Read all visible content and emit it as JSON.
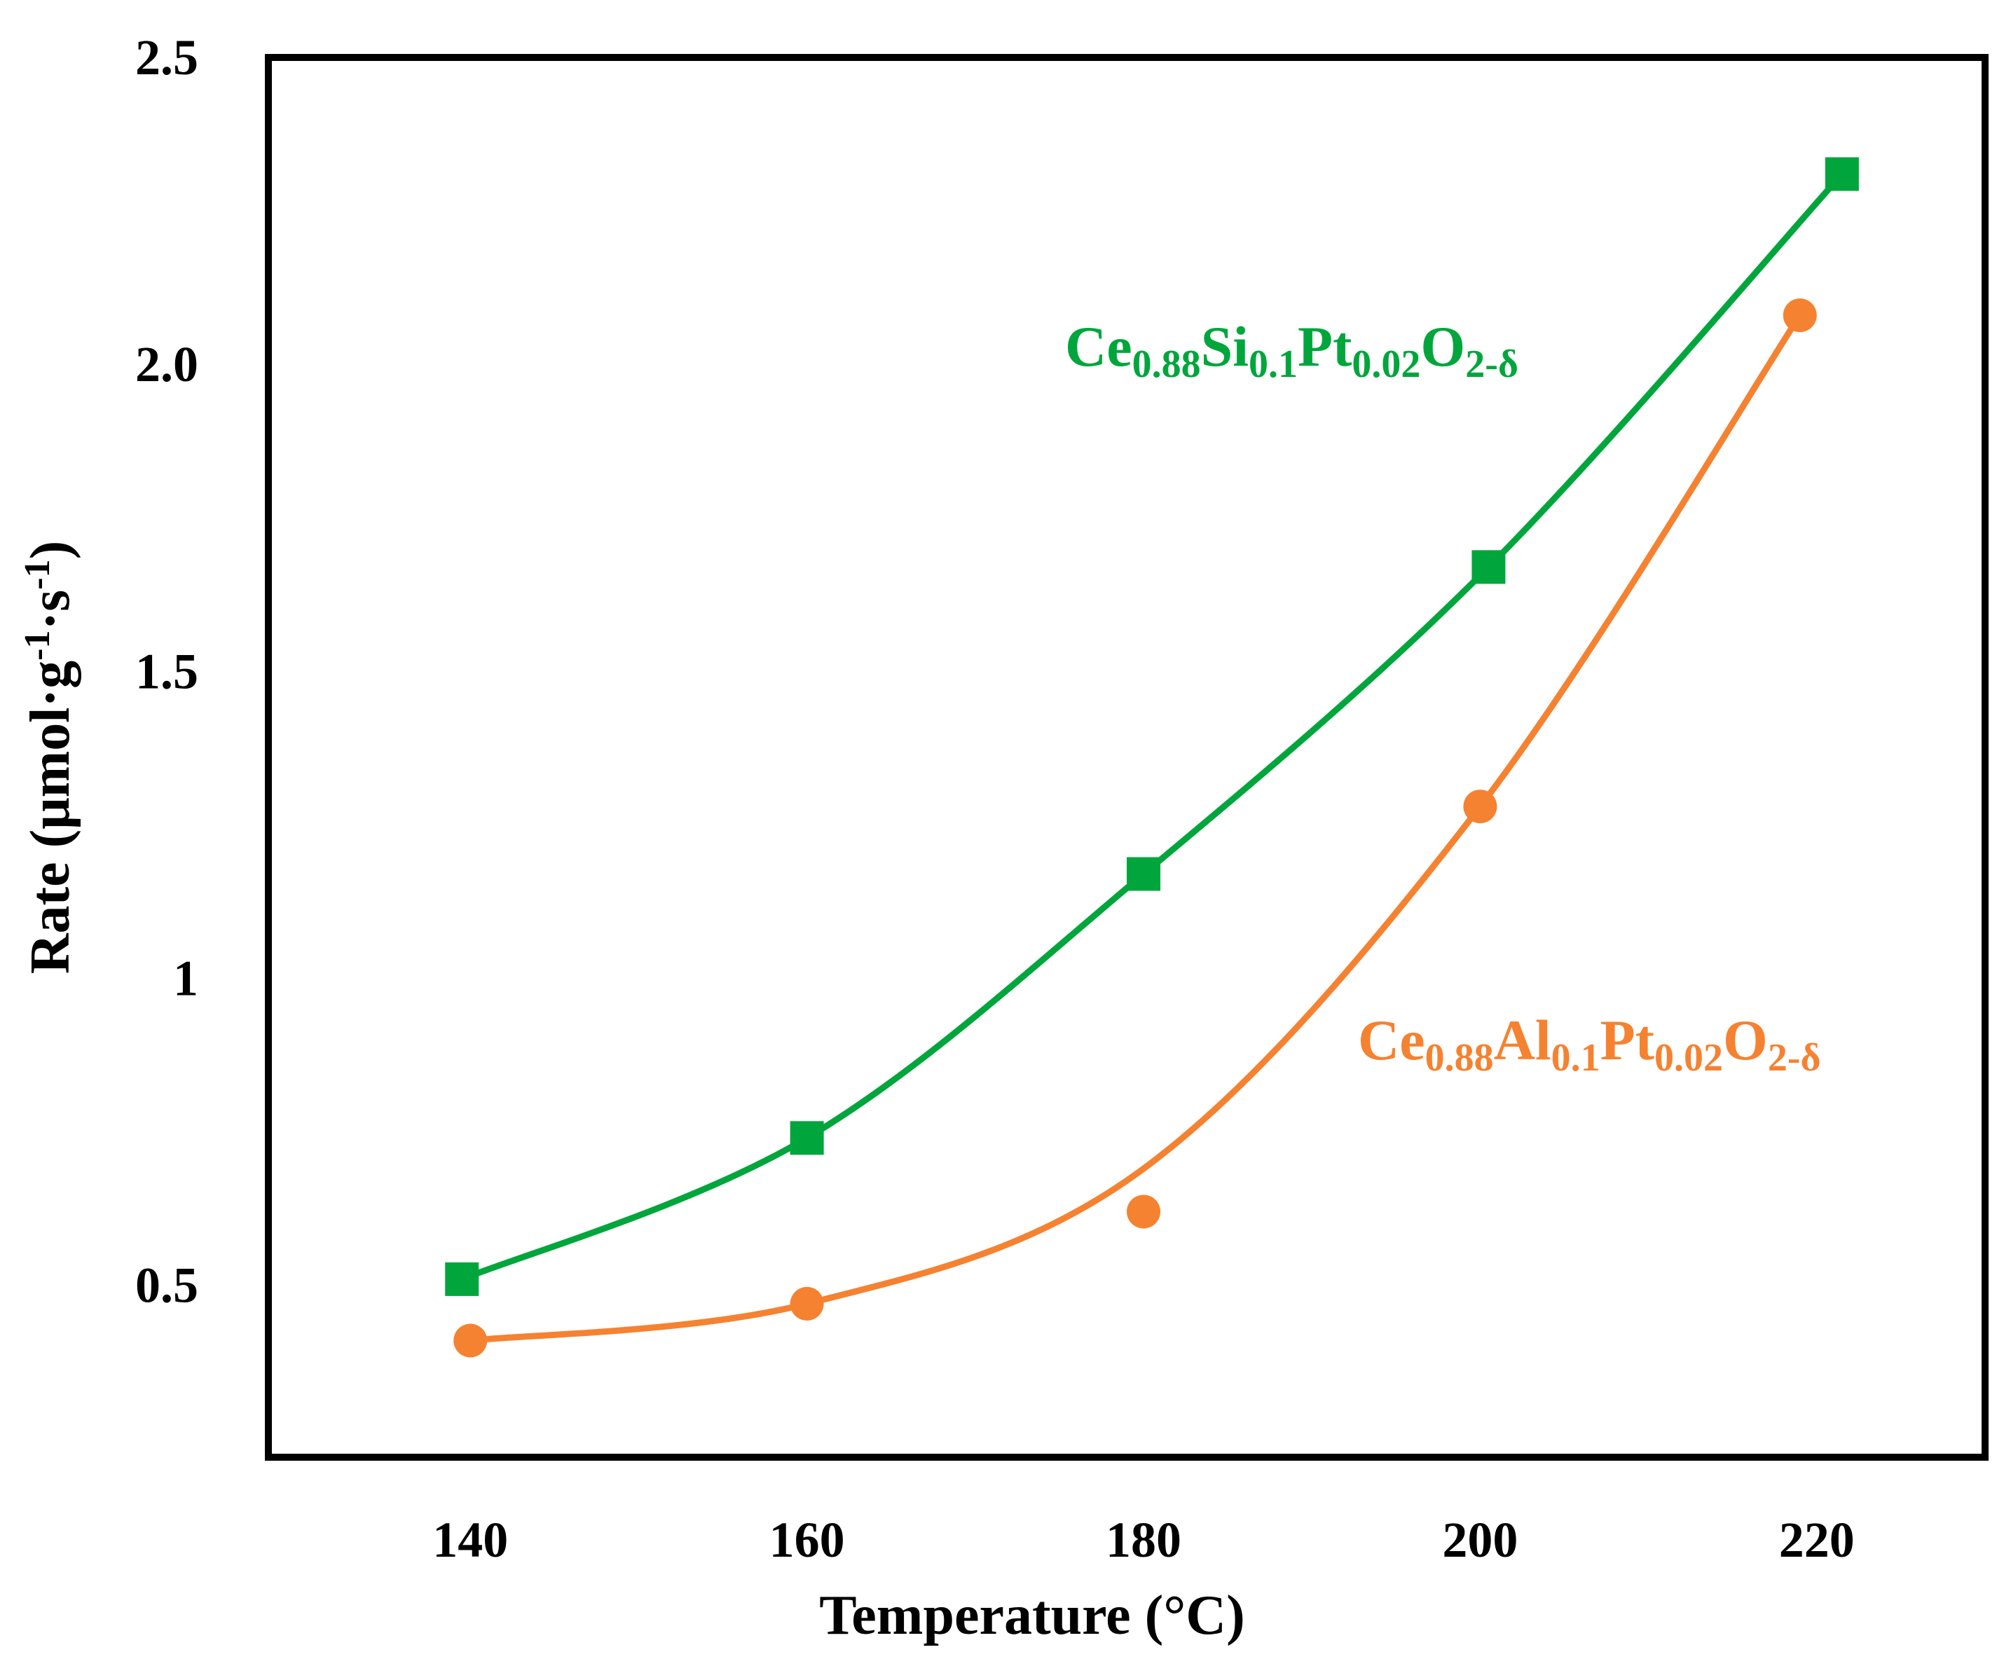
{
  "chart_data": {
    "type": "line",
    "title": "",
    "xlabel": "Temperature (°C)",
    "ylabel": "Rate (μmol·g⁻¹·s⁻¹)",
    "ylabel_parts": {
      "start": "Rate (μmol·g",
      "sup1": "-1",
      "mid": "·s",
      "sup2": "-1",
      "end": ")"
    },
    "xlim": [
      128,
      230
    ],
    "ylim": [
      0.22,
      2.5
    ],
    "xticks": [
      140,
      160,
      180,
      200,
      220
    ],
    "xtick_labels": [
      "140",
      "160",
      "180",
      "200",
      "220"
    ],
    "yticks": [
      0.5,
      1,
      1.5,
      2.0,
      2.5
    ],
    "ytick_labels": [
      "0.5",
      "1",
      "1.5",
      "2.0",
      "2.5"
    ],
    "grid": false,
    "series": [
      {
        "name": "Ce0.88Si0.1Pt0.02O2-δ",
        "color": "#00A63C",
        "marker": "square",
        "x": [
          139.5,
          160,
          180,
          200.5,
          221.5
        ],
        "y": [
          0.51,
          0.74,
          1.17,
          1.67,
          2.31
        ],
        "label_parts": [
          {
            "text": "Ce",
            "sub": false
          },
          {
            "text": "0.88",
            "sub": true
          },
          {
            "text": "Si",
            "sub": false
          },
          {
            "text": "0.1",
            "sub": true
          },
          {
            "text": "Pt",
            "sub": false
          },
          {
            "text": "0.02",
            "sub": true
          },
          {
            "text": "O",
            "sub": false
          },
          {
            "text": "2-δ",
            "sub": true
          }
        ]
      },
      {
        "name": "Ce0.88Al0.1Pt0.02O2-δ",
        "color": "#F58231",
        "marker": "circle",
        "x": [
          140,
          160,
          180,
          200,
          219
        ],
        "y": [
          0.41,
          0.47,
          0.62,
          1.28,
          2.08
        ],
        "label_parts": [
          {
            "text": "Ce",
            "sub": false
          },
          {
            "text": "0.88",
            "sub": true
          },
          {
            "text": "Al",
            "sub": false
          },
          {
            "text": "0.1",
            "sub": true
          },
          {
            "text": "Pt",
            "sub": false
          },
          {
            "text": "0.02",
            "sub": true
          },
          {
            "text": "O",
            "sub": false
          },
          {
            "text": "2-δ",
            "sub": true
          }
        ]
      }
    ]
  }
}
